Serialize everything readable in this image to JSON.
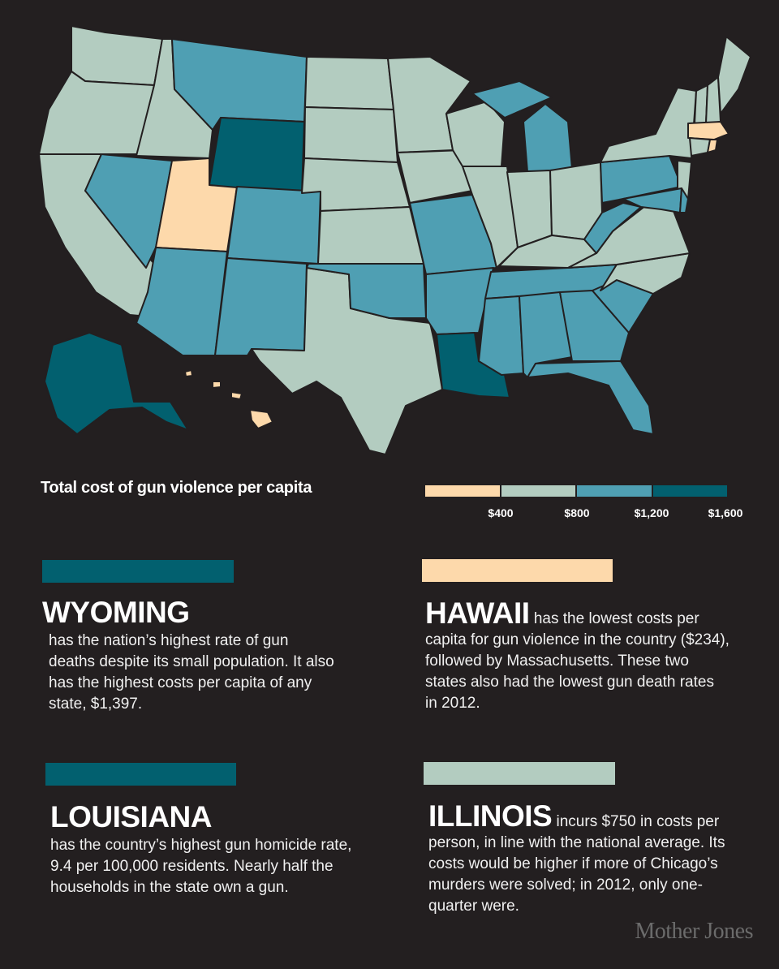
{
  "colors": {
    "background": "#231f20",
    "tier_lowest": "#fdd9ab",
    "tier_low": "#b3ccc0",
    "tier_mid": "#4f9fb3",
    "tier_high": "#02606f"
  },
  "map": {
    "states": [
      {
        "name": "WA",
        "tier": "low"
      },
      {
        "name": "OR",
        "tier": "low"
      },
      {
        "name": "CA",
        "tier": "low"
      },
      {
        "name": "ID",
        "tier": "low"
      },
      {
        "name": "NV",
        "tier": "mid"
      },
      {
        "name": "UT",
        "tier": "lowest"
      },
      {
        "name": "AZ",
        "tier": "mid"
      },
      {
        "name": "MT",
        "tier": "mid"
      },
      {
        "name": "WY",
        "tier": "high"
      },
      {
        "name": "CO",
        "tier": "mid"
      },
      {
        "name": "NM",
        "tier": "mid"
      },
      {
        "name": "TX",
        "tier": "low"
      },
      {
        "name": "ND",
        "tier": "low"
      },
      {
        "name": "SD",
        "tier": "low"
      },
      {
        "name": "NE",
        "tier": "low"
      },
      {
        "name": "KS",
        "tier": "low"
      },
      {
        "name": "OK",
        "tier": "mid"
      },
      {
        "name": "MN",
        "tier": "low"
      },
      {
        "name": "IA",
        "tier": "low"
      },
      {
        "name": "MO",
        "tier": "mid"
      },
      {
        "name": "AR",
        "tier": "mid"
      },
      {
        "name": "LA",
        "tier": "high"
      },
      {
        "name": "WI",
        "tier": "low"
      },
      {
        "name": "IL",
        "tier": "low"
      },
      {
        "name": "MI",
        "tier": "mid"
      },
      {
        "name": "IN",
        "tier": "low"
      },
      {
        "name": "OH",
        "tier": "low"
      },
      {
        "name": "KY",
        "tier": "low"
      },
      {
        "name": "TN",
        "tier": "mid"
      },
      {
        "name": "MS",
        "tier": "mid"
      },
      {
        "name": "AL",
        "tier": "mid"
      },
      {
        "name": "GA",
        "tier": "mid"
      },
      {
        "name": "FL",
        "tier": "mid"
      },
      {
        "name": "SC",
        "tier": "mid"
      },
      {
        "name": "NC",
        "tier": "low"
      },
      {
        "name": "VA",
        "tier": "low"
      },
      {
        "name": "WV",
        "tier": "mid"
      },
      {
        "name": "PA",
        "tier": "mid"
      },
      {
        "name": "NY",
        "tier": "low"
      },
      {
        "name": "NJ",
        "tier": "low"
      },
      {
        "name": "MD",
        "tier": "mid"
      },
      {
        "name": "DE",
        "tier": "mid"
      },
      {
        "name": "VT",
        "tier": "low"
      },
      {
        "name": "NH",
        "tier": "low"
      },
      {
        "name": "ME",
        "tier": "low"
      },
      {
        "name": "MA",
        "tier": "lowest"
      },
      {
        "name": "CT",
        "tier": "low"
      },
      {
        "name": "RI",
        "tier": "lowest"
      },
      {
        "name": "AK",
        "tier": "high"
      },
      {
        "name": "HI",
        "tier": "lowest"
      }
    ]
  },
  "legend": {
    "title": "Total cost of gun violence per capita",
    "swatches": [
      "#fdd9ab",
      "#b3ccc0",
      "#4f9fb3",
      "#02606f"
    ],
    "ticks": [
      "$400",
      "$800",
      "$1,200",
      "$1,600"
    ]
  },
  "cards": {
    "wyoming": {
      "color": "#02606f",
      "name": "WYOMING",
      "text": "has the nation’s highest rate of gun deaths despite its small population. It also has the highest costs per capita of any state, $1,397."
    },
    "hawaii": {
      "color": "#fdd9ab",
      "name": "HAWAII",
      "text": "has the lowest costs per capita for gun violence in the country ($234), followed by Massachusetts. These two states also had the lowest gun death rates in 2012."
    },
    "louisiana": {
      "color": "#02606f",
      "name": "LOUISIANA",
      "text": "has the country’s highest gun homicide rate, 9.4 per 100,000 residents. Nearly half the households in the state own a gun."
    },
    "illinois": {
      "color": "#b3ccc0",
      "name": "ILLINOIS",
      "text": "incurs $750 in costs per person, in line with the national average. Its costs would be higher if more of Chicago’s murders were solved; in 2012, only one-quarter were."
    }
  },
  "credit": "Mother Jones"
}
